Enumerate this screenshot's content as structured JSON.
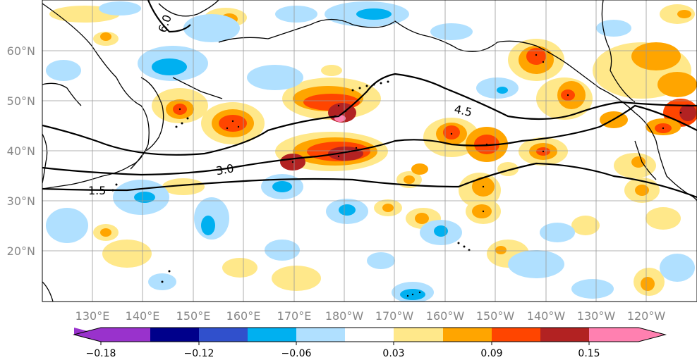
{
  "map": {
    "lat_labels": [
      "60°N",
      "50°N",
      "40°N",
      "30°N",
      "20°N"
    ],
    "lon_labels": [
      "130°E",
      "140°E",
      "150°E",
      "160°E",
      "170°E",
      "180°W",
      "170°W",
      "160°W",
      "150°W",
      "140°W",
      "130°W",
      "120°W"
    ],
    "contour_labels": [
      "6.0",
      "4.5",
      "3.0",
      "1.5"
    ],
    "lat_range": [
      10,
      70
    ],
    "lon_range": [
      120,
      250
    ]
  },
  "colorbar": {
    "tick_labels": [
      "−0.18",
      "−0.12",
      "−0.06",
      "0.03",
      "0.09",
      "0.15"
    ],
    "colors": [
      "#9932cc",
      "#00008b",
      "#3050cc",
      "#00b0f0",
      "#b0e0ff",
      "#ffffff",
      "#ffe88a",
      "#ffa500",
      "#ff4500",
      "#b22222",
      "#ff80b0"
    ]
  }
}
